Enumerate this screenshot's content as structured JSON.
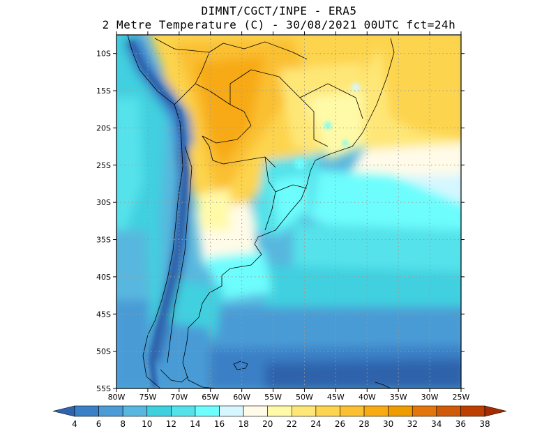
{
  "title_line1": "DIMNT/CGCT/INPE -  ERA5",
  "title_line2": "2 Metre Temperature (C) -  30/08/2021 00UTC fct=24h",
  "map": {
    "lon_min": -80,
    "lon_max": -25,
    "lat_min": -55,
    "lat_max": -7.5,
    "lat_ticks": [
      {
        "value": -10,
        "label": "10S"
      },
      {
        "value": -15,
        "label": "15S"
      },
      {
        "value": -20,
        "label": "20S"
      },
      {
        "value": -25,
        "label": "25S"
      },
      {
        "value": -30,
        "label": "30S"
      },
      {
        "value": -35,
        "label": "35S"
      },
      {
        "value": -40,
        "label": "40S"
      },
      {
        "value": -45,
        "label": "45S"
      },
      {
        "value": -50,
        "label": "50S"
      },
      {
        "value": -55,
        "label": "55S"
      }
    ],
    "lon_ticks": [
      {
        "value": -80,
        "label": "80W"
      },
      {
        "value": -75,
        "label": "75W"
      },
      {
        "value": -70,
        "label": "70W"
      },
      {
        "value": -65,
        "label": "65W"
      },
      {
        "value": -60,
        "label": "60W"
      },
      {
        "value": -55,
        "label": "55W"
      },
      {
        "value": -50,
        "label": "50W"
      },
      {
        "value": -45,
        "label": "45W"
      },
      {
        "value": -40,
        "label": "40W"
      },
      {
        "value": -35,
        "label": "35W"
      },
      {
        "value": -30,
        "label": "30W"
      },
      {
        "value": -25,
        "label": "25W"
      }
    ],
    "grid": true
  },
  "colorbar": {
    "labels": [
      "4",
      "6",
      "8",
      "10",
      "12",
      "14",
      "16",
      "18",
      "20",
      "22",
      "24",
      "26",
      "28",
      "30",
      "32",
      "34",
      "36",
      "38"
    ],
    "colors": [
      "#2f64ac",
      "#3a80c6",
      "#4a9bd6",
      "#58b7de",
      "#3fd0e0",
      "#54e2ea",
      "#6dfdfd",
      "#d6f7ff",
      "#fffbe8",
      "#fffaa8",
      "#fee777",
      "#fdd44e",
      "#fac032",
      "#f7aa14",
      "#ef9c00",
      "#e2760a",
      "#cf5a07",
      "#bc3f00",
      "#a52b00"
    ]
  }
}
